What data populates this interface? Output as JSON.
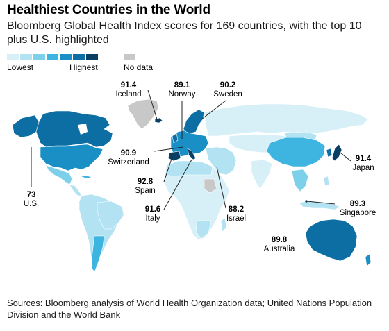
{
  "header": {
    "title": "Healthiest Countries in the World",
    "subtitle": "Bloomberg Global Health Index scores for 169 countries, with the top 10 plus U.S. highlighted"
  },
  "legend": {
    "low_label": "Lowest",
    "high_label": "Highest",
    "nodata_label": "No data",
    "scale_colors": [
      "#d7f0f8",
      "#b3e3f2",
      "#7dd0ea",
      "#3eb5e0",
      "#1a8fc5",
      "#0d6ea3",
      "#083f63"
    ],
    "nodata_color": "#c8c8c8"
  },
  "highlights": [
    {
      "country": "Iceland",
      "score": "91.4"
    },
    {
      "country": "Norway",
      "score": "89.1"
    },
    {
      "country": "Sweden",
      "score": "90.2"
    },
    {
      "country": "Switzerland",
      "score": "90.9"
    },
    {
      "country": "Japan",
      "score": "91.4"
    },
    {
      "country": "U.S.",
      "score": "73"
    },
    {
      "country": "Spain",
      "score": "92.8"
    },
    {
      "country": "Italy",
      "score": "91.6"
    },
    {
      "country": "Israel",
      "score": "88.2"
    },
    {
      "country": "Singapore",
      "score": "89.3"
    },
    {
      "country": "Australia",
      "score": "89.8"
    }
  ],
  "source": "Sources: Bloomberg analysis of World Health Organization data; United Nations Population Division and the World Bank"
}
